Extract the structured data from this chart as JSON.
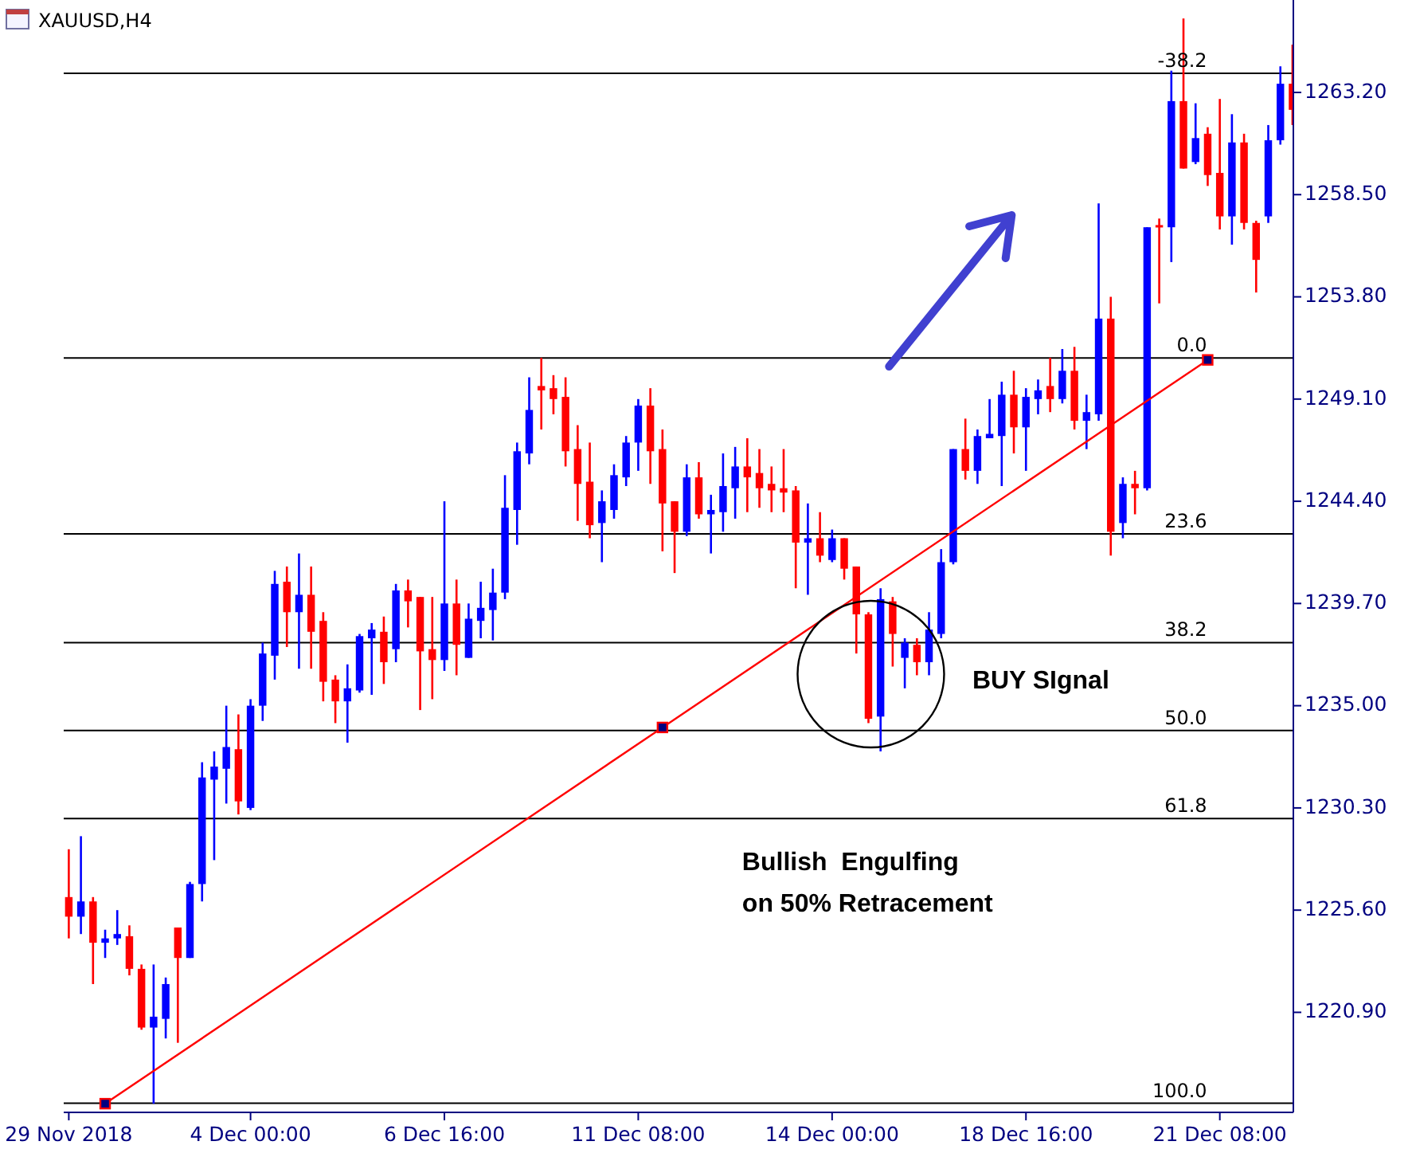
{
  "chart_data": {
    "type": "candlestick",
    "title": "XAUUSD,H4",
    "categories": [
      "29 Nov 2018",
      null,
      null,
      null,
      null,
      null,
      null,
      null,
      null,
      null,
      null,
      null,
      null,
      null,
      null,
      "4 Dec 00:00",
      null,
      null,
      null,
      null,
      null,
      null,
      null,
      null,
      null,
      null,
      null,
      null,
      null,
      null,
      null,
      "6 Dec 16:00",
      null,
      null,
      null,
      null,
      null,
      null,
      null,
      null,
      null,
      null,
      null,
      null,
      null,
      null,
      null,
      "11 Dec 08:00",
      null,
      null,
      null,
      null,
      null,
      null,
      null,
      null,
      null,
      null,
      null,
      null,
      null,
      null,
      null,
      "14 Dec 00:00",
      null,
      null,
      null,
      null,
      null,
      null,
      null,
      null,
      null,
      null,
      null,
      null,
      null,
      null,
      null,
      "18 Dec 16:00",
      null,
      null,
      null,
      null,
      null,
      null,
      null,
      null,
      null,
      null,
      null,
      null,
      null,
      null,
      null,
      "21 Dec 08:00",
      null,
      null,
      null,
      null,
      null,
      null
    ],
    "ohlc": [
      [
        1226.2,
        1228.4,
        1224.3,
        1225.3
      ],
      [
        1225.3,
        1229.0,
        1224.5,
        1226.0
      ],
      [
        1226.0,
        1226.2,
        1222.2,
        1224.1
      ],
      [
        1224.1,
        1224.7,
        1223.4,
        1224.3
      ],
      [
        1224.3,
        1225.6,
        1224.0,
        1224.5
      ],
      [
        1224.4,
        1224.9,
        1222.6,
        1222.9
      ],
      [
        1222.9,
        1223.1,
        1220.1,
        1220.2
      ],
      [
        1220.2,
        1223.1,
        1216.7,
        1220.7
      ],
      [
        1220.6,
        1222.5,
        1219.7,
        1222.2
      ],
      [
        1224.8,
        1224.8,
        1219.5,
        1223.4
      ],
      [
        1223.4,
        1226.9,
        1223.4,
        1226.8
      ],
      [
        1226.8,
        1232.4,
        1226.0,
        1231.7
      ],
      [
        1231.6,
        1232.9,
        1227.9,
        1232.2
      ],
      [
        1232.1,
        1235.0,
        1230.5,
        1233.1
      ],
      [
        1233.0,
        1234.6,
        1230.0,
        1230.6
      ],
      [
        1230.3,
        1235.3,
        1230.2,
        1235.0
      ],
      [
        1235.0,
        1237.9,
        1234.3,
        1237.4
      ],
      [
        1237.3,
        1241.2,
        1236.2,
        1240.6
      ],
      [
        1240.7,
        1241.4,
        1237.7,
        1239.3
      ],
      [
        1239.3,
        1242.0,
        1236.7,
        1240.1
      ],
      [
        1240.1,
        1241.4,
        1236.7,
        1238.4
      ],
      [
        1238.9,
        1239.3,
        1235.2,
        1236.1
      ],
      [
        1236.2,
        1236.4,
        1234.2,
        1235.2
      ],
      [
        1235.2,
        1236.9,
        1233.3,
        1235.8
      ],
      [
        1235.7,
        1238.3,
        1235.6,
        1238.2
      ],
      [
        1238.1,
        1238.8,
        1235.5,
        1238.5
      ],
      [
        1238.4,
        1239.1,
        1236.0,
        1237.0
      ],
      [
        1237.6,
        1240.6,
        1237.0,
        1240.3
      ],
      [
        1240.3,
        1240.8,
        1238.6,
        1239.8
      ],
      [
        1240.0,
        1240.0,
        1234.8,
        1237.5
      ],
      [
        1237.6,
        1240.0,
        1235.3,
        1237.1
      ],
      [
        1237.1,
        1244.4,
        1236.6,
        1239.7
      ],
      [
        1239.7,
        1240.8,
        1236.4,
        1237.8
      ],
      [
        1237.2,
        1239.7,
        1237.2,
        1239.0
      ],
      [
        1238.9,
        1240.7,
        1238.1,
        1239.5
      ],
      [
        1239.4,
        1241.3,
        1238.0,
        1240.2
      ],
      [
        1240.2,
        1245.6,
        1239.9,
        1244.1
      ],
      [
        1244.0,
        1247.1,
        1242.4,
        1246.7
      ],
      [
        1246.6,
        1250.1,
        1246.1,
        1248.6
      ],
      [
        1249.7,
        1251.0,
        1247.7,
        1249.5
      ],
      [
        1249.6,
        1250.2,
        1248.4,
        1249.1
      ],
      [
        1249.2,
        1250.1,
        1246.0,
        1246.7
      ],
      [
        1246.8,
        1247.9,
        1243.5,
        1245.2
      ],
      [
        1245.3,
        1247.1,
        1242.7,
        1243.3
      ],
      [
        1243.4,
        1244.9,
        1241.6,
        1244.4
      ],
      [
        1244.0,
        1246.1,
        1243.6,
        1245.6
      ],
      [
        1245.5,
        1247.4,
        1245.1,
        1247.1
      ],
      [
        1247.1,
        1249.1,
        1245.8,
        1248.8
      ],
      [
        1248.8,
        1249.6,
        1245.2,
        1246.7
      ],
      [
        1246.8,
        1247.7,
        1242.1,
        1244.3
      ],
      [
        1244.4,
        1244.4,
        1241.1,
        1243.0
      ],
      [
        1243.0,
        1246.1,
        1242.8,
        1245.5
      ],
      [
        1245.5,
        1246.2,
        1243.6,
        1243.8
      ],
      [
        1243.8,
        1244.7,
        1242.0,
        1244.0
      ],
      [
        1243.9,
        1246.6,
        1243.0,
        1245.1
      ],
      [
        1245.0,
        1246.9,
        1243.6,
        1246.0
      ],
      [
        1246.0,
        1247.3,
        1243.9,
        1245.5
      ],
      [
        1245.7,
        1246.8,
        1244.1,
        1245.0
      ],
      [
        1245.2,
        1246.0,
        1243.9,
        1244.9
      ],
      [
        1245.0,
        1246.8,
        1243.9,
        1244.8
      ],
      [
        1244.9,
        1245.1,
        1240.4,
        1242.5
      ],
      [
        1242.5,
        1244.3,
        1240.1,
        1242.7
      ],
      [
        1242.7,
        1243.9,
        1241.6,
        1241.9
      ],
      [
        1241.7,
        1243.1,
        1241.6,
        1242.7
      ],
      [
        1242.7,
        1242.7,
        1240.8,
        1241.3
      ],
      [
        1241.4,
        1241.4,
        1237.4,
        1239.2
      ],
      [
        1239.2,
        1239.3,
        1234.2,
        1234.4
      ],
      [
        1234.5,
        1240.4,
        1232.9,
        1239.9
      ],
      [
        1239.8,
        1240.0,
        1236.8,
        1238.3
      ],
      [
        1237.2,
        1238.1,
        1235.8,
        1237.9
      ],
      [
        1237.8,
        1238.1,
        1236.4,
        1237.0
      ],
      [
        1237.0,
        1239.3,
        1236.4,
        1238.5
      ],
      [
        1238.3,
        1242.2,
        1238.1,
        1241.6
      ],
      [
        1241.6,
        1246.8,
        1241.5,
        1246.8
      ],
      [
        1246.8,
        1248.2,
        1245.4,
        1245.8
      ],
      [
        1245.8,
        1247.7,
        1245.2,
        1247.4
      ],
      [
        1247.3,
        1249.1,
        1247.3,
        1247.5
      ],
      [
        1247.4,
        1249.9,
        1245.1,
        1249.3
      ],
      [
        1249.3,
        1250.4,
        1246.6,
        1247.8
      ],
      [
        1247.8,
        1249.6,
        1245.8,
        1249.2
      ],
      [
        1249.1,
        1250.0,
        1248.4,
        1249.5
      ],
      [
        1249.7,
        1251.0,
        1248.5,
        1249.1
      ],
      [
        1249.1,
        1251.4,
        1248.9,
        1250.4
      ],
      [
        1250.4,
        1251.5,
        1247.7,
        1248.1
      ],
      [
        1248.1,
        1249.3,
        1246.8,
        1248.5
      ],
      [
        1248.4,
        1258.1,
        1248.1,
        1252.8
      ],
      [
        1252.8,
        1253.8,
        1241.9,
        1243.0
      ],
      [
        1243.4,
        1245.5,
        1242.7,
        1245.2
      ],
      [
        1245.2,
        1245.8,
        1243.8,
        1245.0
      ],
      [
        1245.0,
        1257.0,
        1244.9,
        1257.0
      ],
      [
        1257.1,
        1257.4,
        1253.5,
        1257.0
      ],
      [
        1257.0,
        1264.2,
        1255.4,
        1262.8
      ],
      [
        1262.8,
        1266.6,
        1259.7,
        1259.7
      ],
      [
        1260.0,
        1262.7,
        1259.9,
        1261.1
      ],
      [
        1261.3,
        1261.6,
        1258.9,
        1259.4
      ],
      [
        1259.5,
        1262.9,
        1256.9,
        1257.5
      ],
      [
        1257.5,
        1262.2,
        1256.2,
        1260.9
      ],
      [
        1260.9,
        1261.3,
        1256.9,
        1257.2
      ],
      [
        1257.2,
        1257.3,
        1254.0,
        1255.5
      ],
      [
        1257.5,
        1261.7,
        1257.2,
        1261.0
      ],
      [
        1261.0,
        1264.4,
        1260.8,
        1263.6
      ],
      [
        1263.6,
        1265.4,
        1261.7,
        1262.4
      ]
    ],
    "colors": [
      "#ff0000",
      "#0000ff",
      "#ff0000",
      "#0000ff",
      "#0000ff",
      "#ff0000",
      "#ff0000",
      "#0000ff",
      "#0000ff",
      "#ff0000",
      "#0000ff",
      "#0000ff",
      "#0000ff",
      "#0000ff",
      "#ff0000",
      "#0000ff",
      "#0000ff",
      "#0000ff",
      "#ff0000",
      "#0000ff",
      "#ff0000",
      "#ff0000",
      "#ff0000",
      "#0000ff",
      "#0000ff",
      "#0000ff",
      "#ff0000",
      "#0000ff",
      "#ff0000",
      "#ff0000",
      "#ff0000",
      "#0000ff",
      "#ff0000",
      "#0000ff",
      "#0000ff",
      "#0000ff",
      "#0000ff",
      "#0000ff",
      "#0000ff",
      "#ff0000",
      "#ff0000",
      "#ff0000",
      "#ff0000",
      "#ff0000",
      "#0000ff",
      "#0000ff",
      "#0000ff",
      "#0000ff",
      "#ff0000",
      "#ff0000",
      "#ff0000",
      "#0000ff",
      "#ff0000",
      "#0000ff",
      "#0000ff",
      "#0000ff",
      "#ff0000",
      "#ff0000",
      "#ff0000",
      "#ff0000",
      "#ff0000",
      "#0000ff",
      "#ff0000",
      "#0000ff",
      "#ff0000",
      "#ff0000",
      "#ff0000",
      "#0000ff",
      "#ff0000",
      "#0000ff",
      "#ff0000",
      "#0000ff",
      "#0000ff",
      "#0000ff",
      "#ff0000",
      "#0000ff",
      "#0000ff",
      "#0000ff",
      "#ff0000",
      "#0000ff",
      "#0000ff",
      "#ff0000",
      "#0000ff",
      "#ff0000",
      "#0000ff",
      "#0000ff",
      "#ff0000",
      "#0000ff",
      "#ff0000",
      "#0000ff",
      "#ff0000",
      "#0000ff",
      "#ff0000",
      "#0000ff",
      "#ff0000",
      "#ff0000",
      "#0000ff",
      "#ff0000",
      "#ff0000",
      "#0000ff",
      "#0000ff",
      "#ff0000"
    ],
    "series": [
      {
        "type": "line",
        "color": "#ff0000",
        "values": [
          null,
          null,
          null,
          1216.7,
          null,
          null,
          null,
          null,
          null,
          null,
          null,
          null,
          null,
          null,
          null,
          null,
          null,
          null,
          null,
          null,
          null,
          null,
          null,
          null,
          null,
          null,
          null,
          null,
          null,
          null,
          null,
          null,
          null,
          null,
          null,
          null,
          null,
          null,
          null,
          null,
          null,
          null,
          null,
          null,
          null,
          null,
          null,
          null,
          null,
          1234.0,
          null,
          null,
          null,
          null,
          null,
          null,
          null,
          null,
          null,
          null,
          null,
          null,
          null,
          null,
          null,
          null,
          null,
          null,
          null,
          null,
          null,
          null,
          null,
          null,
          null,
          null,
          null,
          null,
          null,
          null,
          null,
          null,
          null,
          null,
          null,
          null,
          null,
          null,
          null,
          null,
          null,
          null,
          null,
          null,
          1250.9,
          null,
          null,
          null,
          null,
          null,
          null,
          null
        ]
      }
    ],
    "marker": "square",
    "ylim": [
      1216.3,
      1267.45
    ],
    "yticks": [
      {
        "value": 1220.9,
        "label": "1220.90"
      },
      {
        "value": 1225.6,
        "label": "1225.60"
      },
      {
        "value": 1230.3,
        "label": "1230.30"
      },
      {
        "value": 1235,
        "label": "1235.00"
      },
      {
        "value": 1239.7,
        "label": "1239.70"
      },
      {
        "value": 1244.4,
        "label": "1244.40"
      },
      {
        "value": 1249.1,
        "label": "1249.10"
      },
      {
        "value": 1253.8,
        "label": "1253.80"
      },
      {
        "value": 1258.5,
        "label": "1258.50"
      },
      {
        "value": 1263.2,
        "label": "1263.20"
      }
    ],
    "ref_lines": [
      {
        "axis": "y",
        "value": 1264.08,
        "color": "#000000"
      },
      {
        "axis": "y",
        "value": 1250.99,
        "color": "#000000"
      },
      {
        "axis": "y",
        "value": 1242.9,
        "color": "#000000"
      },
      {
        "axis": "y",
        "value": 1237.9,
        "color": "#000000"
      },
      {
        "axis": "y",
        "value": 1233.86,
        "color": "#000000"
      },
      {
        "axis": "y",
        "value": 1229.81,
        "color": "#000000"
      },
      {
        "axis": "y",
        "value": 1216.72,
        "color": "#000000"
      }
    ],
    "annotations": [
      "BUY SIgnal",
      "Bullish  Engulfing\non 50% Retracement",
      {
        "text": "-38.2",
        "y": 1264.08
      },
      {
        "text": "0.0",
        "y": 1250.99
      },
      {
        "text": "23.6",
        "y": 1242.9
      },
      {
        "text": "38.2",
        "y": 1237.9
      },
      {
        "text": "50.0",
        "y": 1233.86
      },
      {
        "text": "61.8",
        "y": 1229.81
      },
      {
        "text": "100.0",
        "y": 1216.72
      }
    ],
    "grid": false
  }
}
